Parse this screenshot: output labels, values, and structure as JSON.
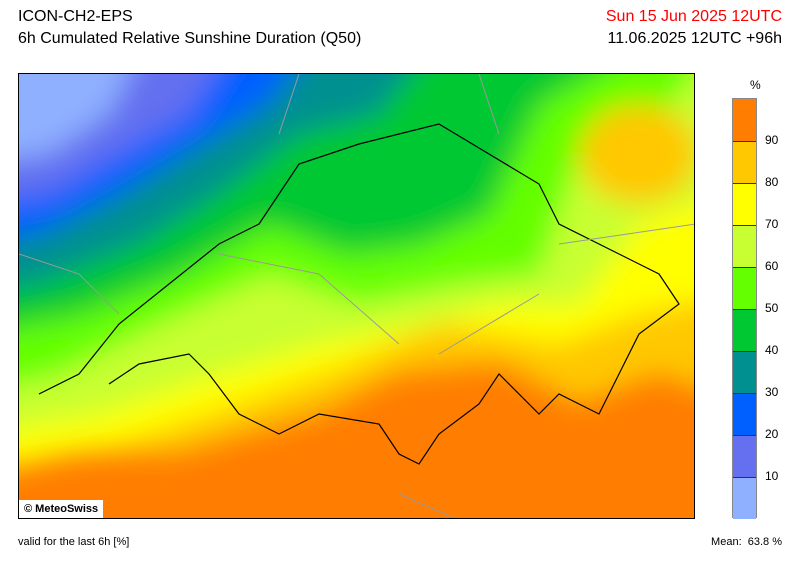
{
  "header": {
    "model": "ICON-CH2-EPS",
    "title": "6h Cumulated Relative Sunshine Duration (Q50)",
    "valid_time": "Sun 15 Jun 2025 12UTC",
    "run_info": "11.06.2025 12UTC +96h",
    "valid_color": "#ff0000"
  },
  "map": {
    "copyright": "© MeteoSwiss"
  },
  "legend": {
    "unit": "%",
    "ticks": [
      "10",
      "20",
      "30",
      "40",
      "50",
      "60",
      "70",
      "80",
      "90"
    ],
    "colors": [
      "#8fb0ff",
      "#6470f0",
      "#0060ff",
      "#009090",
      "#00c832",
      "#64ff00",
      "#c8ff32",
      "#ffff00",
      "#ffc800",
      "#ff7d00"
    ]
  },
  "footer": {
    "note": "valid for the last 6h [%]",
    "mean_label": "Mean:",
    "mean_value": "63.8 %"
  }
}
